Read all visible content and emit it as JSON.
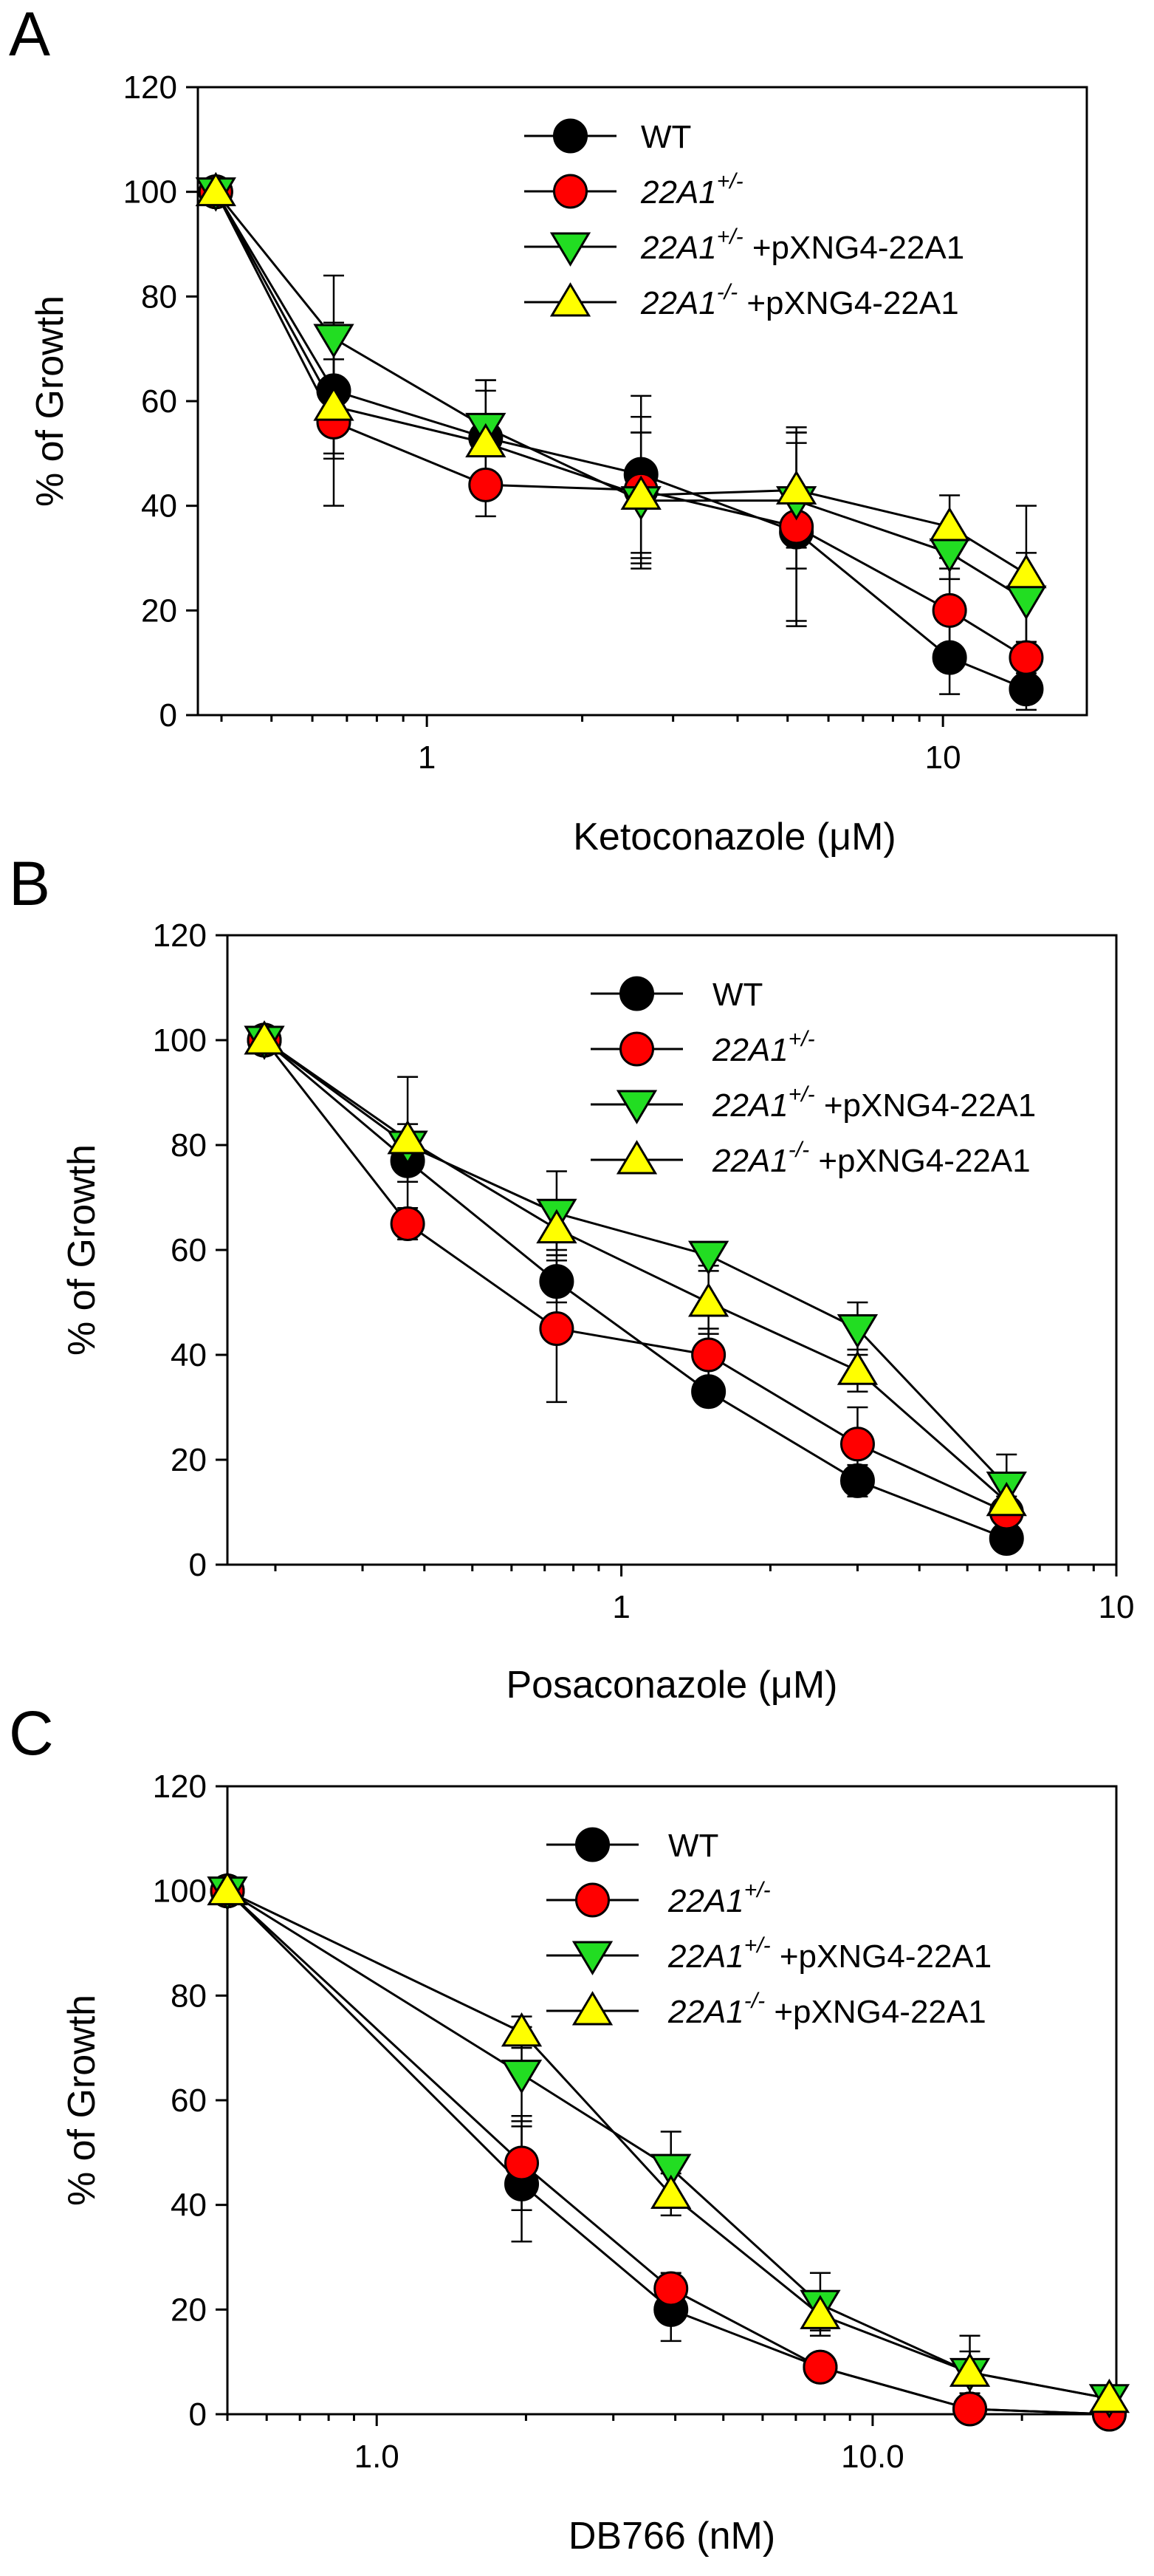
{
  "colors": {
    "WT": "#000000",
    "het": "#ff0000",
    "het_rescue": "#22dd22",
    "null_rescue": "#ffff00"
  },
  "chart_data": [
    {
      "panel": "A",
      "type": "line",
      "xscale": "log",
      "xlim": [
        0.36,
        19
      ],
      "ylim": [
        0,
        120
      ],
      "yticks": [
        0,
        20,
        40,
        60,
        80,
        100,
        120
      ],
      "xticks": [
        1,
        10
      ],
      "xtick_labels": [
        "1",
        "10"
      ],
      "xlabel": "Ketoconazole (μM)",
      "ylabel": "% of Growth",
      "legend_position": "top-right",
      "x": [
        0.39,
        0.66,
        1.3,
        2.6,
        5.2,
        10.3,
        14.5
      ],
      "series": [
        {
          "key": "WT",
          "label": "WT",
          "sup": "",
          "suffix": "",
          "marker": "circle",
          "values": [
            100,
            62,
            53,
            46,
            35,
            11,
            5
          ],
          "errors": [
            0,
            13,
            11,
            15,
            17,
            7,
            4
          ]
        },
        {
          "key": "het",
          "label": "22A1",
          "sup": "+/-",
          "suffix": "",
          "marker": "circle",
          "values": [
            100,
            56,
            44,
            43,
            36,
            20,
            11
          ],
          "errors": [
            0,
            16,
            6,
            14,
            19,
            8,
            3
          ]
        },
        {
          "key": "het_rescue",
          "label": "22A1",
          "sup": "+/-",
          "suffix": " +pXNG4-22A1",
          "marker": "triangle-down",
          "values": [
            100,
            72,
            55,
            41,
            41,
            31,
            22
          ],
          "errors": [
            0,
            12,
            9,
            13,
            13,
            5,
            9
          ]
        },
        {
          "key": "null_rescue",
          "label": "22A1",
          "sup": "-/-",
          "suffix": " +pXNG4-22A1",
          "marker": "triangle-up",
          "values": [
            100,
            59,
            52,
            42,
            43,
            36,
            27
          ],
          "errors": [
            0,
            9,
            10,
            12,
            11,
            6,
            13
          ]
        }
      ]
    },
    {
      "panel": "B",
      "type": "line",
      "xscale": "log",
      "xlim": [
        0.16,
        10
      ],
      "ylim": [
        0,
        120
      ],
      "yticks": [
        0,
        20,
        40,
        60,
        80,
        100,
        120
      ],
      "xticks": [
        1,
        10
      ],
      "xtick_labels": [
        "1",
        "10"
      ],
      "xlabel": "Posaconazole (μM)",
      "ylabel": "% of Growth",
      "legend_position": "top-right",
      "x": [
        0.19,
        0.37,
        0.74,
        1.5,
        3.0,
        6.0
      ],
      "series": [
        {
          "key": "WT",
          "label": "WT",
          "sup": "",
          "suffix": "",
          "marker": "circle",
          "values": [
            100,
            77,
            54,
            33,
            16,
            5
          ],
          "errors": [
            0,
            4,
            4,
            2,
            3,
            2
          ]
        },
        {
          "key": "het",
          "label": "22A1",
          "sup": "+/-",
          "suffix": "",
          "marker": "circle",
          "values": [
            100,
            65,
            45,
            40,
            23,
            10
          ],
          "errors": [
            0,
            3,
            14,
            5,
            7,
            3
          ]
        },
        {
          "key": "het_rescue",
          "label": "22A1",
          "sup": "+/-",
          "suffix": " +pXNG4-22A1",
          "marker": "triangle-down",
          "values": [
            100,
            80,
            67,
            59,
            45,
            15
          ],
          "errors": [
            0,
            13,
            8,
            2,
            5,
            6
          ]
        },
        {
          "key": "null_rescue",
          "label": "22A1",
          "sup": "-/-",
          "suffix": " +pXNG4-22A1",
          "marker": "triangle-up",
          "values": [
            100,
            81,
            64,
            50,
            37,
            12
          ],
          "errors": [
            0,
            3,
            4,
            6,
            4,
            3
          ]
        }
      ]
    },
    {
      "panel": "C",
      "type": "line",
      "xscale": "log",
      "xlim": [
        0.5,
        31
      ],
      "ylim": [
        0,
        120
      ],
      "yticks": [
        0,
        20,
        40,
        60,
        80,
        100,
        120
      ],
      "xticks": [
        1,
        10
      ],
      "xtick_labels": [
        "1.0",
        "10.0"
      ],
      "xlabel": "DB766 (nM)",
      "ylabel": "% of Growth",
      "legend_position": "top-right",
      "x": [
        0.5,
        1.96,
        3.92,
        7.84,
        15.7,
        30
      ],
      "series": [
        {
          "key": "WT",
          "label": "WT",
          "sup": "",
          "suffix": "",
          "marker": "circle",
          "values": [
            100,
            44,
            20,
            9,
            1,
            0
          ],
          "errors": [
            0,
            11,
            6,
            2,
            1,
            0
          ]
        },
        {
          "key": "het",
          "label": "22A1",
          "sup": "+/-",
          "suffix": "",
          "marker": "circle",
          "values": [
            100,
            48,
            24,
            9,
            1,
            0
          ],
          "errors": [
            0,
            9,
            3,
            1,
            1,
            0
          ]
        },
        {
          "key": "het_rescue",
          "label": "22A1",
          "sup": "+/-",
          "suffix": " +pXNG4-22A1",
          "marker": "triangle-down",
          "values": [
            100,
            65,
            47,
            21,
            8,
            3
          ],
          "errors": [
            0,
            9,
            7,
            6,
            7,
            2
          ]
        },
        {
          "key": "null_rescue",
          "label": "22A1",
          "sup": "-/-",
          "suffix": " +pXNG4-22A1",
          "marker": "triangle-up",
          "values": [
            100,
            73,
            42,
            19,
            8,
            3
          ],
          "errors": [
            0,
            3,
            4,
            3,
            4,
            2
          ]
        }
      ]
    }
  ]
}
